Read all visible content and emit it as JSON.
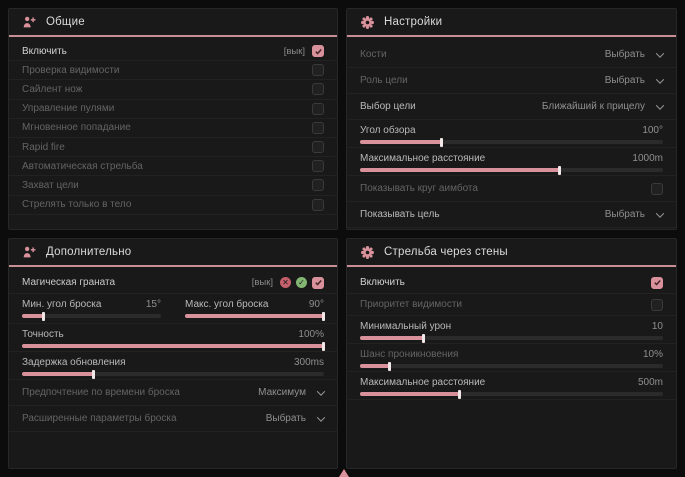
{
  "theme": {
    "accent": "#d9929b",
    "header_line": "#c98f97",
    "panel_bg": "#191919",
    "page_bg": "#0c0c0c"
  },
  "panels": {
    "general": {
      "title": "Общие",
      "icon": "aimbot-person-icon",
      "rows": [
        {
          "label": "Включить",
          "hint": "[вык]",
          "checked": true
        },
        {
          "label": "Проверка видимости",
          "checked": false
        },
        {
          "label": "Сайлент нож",
          "checked": false
        },
        {
          "label": "Управление пулями",
          "checked": false
        },
        {
          "label": "Мгновенное попадание",
          "checked": false
        },
        {
          "label": "Rapid fire",
          "checked": false
        },
        {
          "label": "Автоматическая стрельба",
          "checked": false
        },
        {
          "label": "Захват цели",
          "checked": false
        },
        {
          "label": "Стрелять только в тело",
          "checked": false
        }
      ]
    },
    "settings": {
      "title": "Настройки",
      "icon": "gear-icon",
      "rows": [
        {
          "label": "Кости",
          "value": "Выбрать"
        },
        {
          "label": "Роль цели",
          "value": "Выбрать"
        },
        {
          "label": "Выбор цели",
          "value": "Ближайший к прицелу"
        },
        {
          "label": "Угол обзора",
          "value": "100°",
          "fill": 27
        },
        {
          "label": "Максимальное расстояние",
          "value": "1000m",
          "fill": 66
        },
        {
          "label": "Показывать круг аимбота",
          "checked": false
        },
        {
          "label": "Показывать цель",
          "value": "Выбрать"
        }
      ]
    },
    "additional": {
      "title": "Дополнительно",
      "icon": "aimbot-person-icon",
      "rows": [
        {
          "label": "Магическая граната",
          "hint": "[вык]",
          "checked": true,
          "icons": [
            "red-indicator-icon",
            "green-indicator-icon"
          ]
        },
        {
          "a_label": "Мин. угол броска",
          "a_value": "15°",
          "a_fill": 16,
          "b_label": "Макс. угол броска",
          "b_value": "90°",
          "b_fill": 100
        },
        {
          "label": "Точность",
          "value": "100%",
          "fill": 100
        },
        {
          "label": "Задержка обновления",
          "value": "300ms",
          "fill": 24
        },
        {
          "label": "Предпочтение по времени броска",
          "value": "Максимум"
        },
        {
          "label": "Расширенные параметры броска",
          "value": "Выбрать"
        }
      ]
    },
    "walls": {
      "title": "Стрельба через стены",
      "icon": "gear-icon",
      "rows": [
        {
          "label": "Включить",
          "checked": true
        },
        {
          "label": "Приоритет видимости",
          "checked": false
        },
        {
          "label": "Минимальный урон",
          "value": "10",
          "fill": 21
        },
        {
          "label": "Шанс проникновения",
          "value": "10%",
          "fill": 10
        },
        {
          "label": "Максимальное расстояние",
          "value": "500m",
          "fill": 33
        }
      ]
    }
  }
}
